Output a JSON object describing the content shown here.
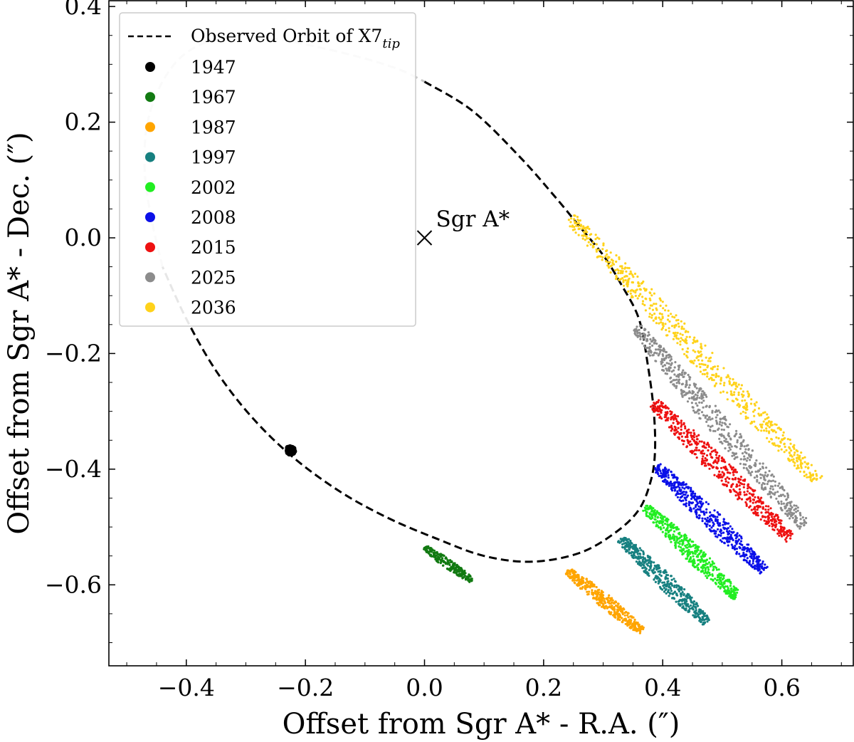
{
  "chart_data": {
    "type": "scatter",
    "xlabel": "Offset from Sgr A* - R.A. (″)",
    "ylabel": "Offset from Sgr A* - Dec. (″)",
    "xlim": [
      -0.53,
      0.72
    ],
    "ylim": [
      -0.74,
      0.41
    ],
    "xticks": [
      -0.4,
      -0.2,
      0.0,
      0.2,
      0.4,
      0.6
    ],
    "yticks": [
      0.4,
      0.2,
      0.0,
      -0.2,
      -0.4,
      -0.6
    ],
    "xtick_labels": [
      "−0.4",
      "−0.2",
      "0.0",
      "0.2",
      "0.4",
      "0.6"
    ],
    "ytick_labels": [
      "0.4",
      "0.2",
      "0.0",
      "−0.2",
      "−0.4",
      "−0.6"
    ],
    "orbit": {
      "label_main": "Observed Orbit of X7",
      "label_sub": "tip",
      "color": "#000000",
      "faded_color": "#c8c8c8",
      "points": [
        [
          0.0,
          0.27
        ],
        [
          0.08,
          0.22
        ],
        [
          0.16,
          0.14
        ],
        [
          0.22,
          0.07
        ],
        [
          0.26,
          0.02
        ],
        [
          0.3,
          -0.03
        ],
        [
          0.33,
          -0.08
        ],
        [
          0.36,
          -0.14
        ],
        [
          0.375,
          -0.22
        ],
        [
          0.385,
          -0.3
        ],
        [
          0.387,
          -0.37
        ],
        [
          0.38,
          -0.42
        ],
        [
          0.36,
          -0.47
        ],
        [
          0.32,
          -0.51
        ],
        [
          0.26,
          -0.545
        ],
        [
          0.18,
          -0.56
        ],
        [
          0.1,
          -0.55
        ],
        [
          0.02,
          -0.52
        ],
        [
          -0.06,
          -0.485
        ],
        [
          -0.14,
          -0.44
        ],
        [
          -0.22,
          -0.38
        ],
        [
          -0.29,
          -0.31
        ],
        [
          -0.35,
          -0.23
        ],
        [
          -0.4,
          -0.14
        ],
        [
          -0.44,
          -0.05
        ],
        [
          -0.46,
          0.04
        ],
        [
          -0.47,
          0.12
        ],
        [
          -0.465,
          0.2
        ],
        [
          -0.44,
          0.27
        ],
        [
          -0.4,
          0.32
        ],
        [
          -0.34,
          0.345
        ],
        [
          -0.26,
          0.345
        ],
        [
          -0.18,
          0.33
        ],
        [
          -0.1,
          0.31
        ],
        [
          -0.04,
          0.29
        ],
        [
          0.0,
          0.27
        ]
      ],
      "faded_x_range": [
        -0.47,
        0.0
      ],
      "faded_y_min": -0.13
    },
    "center": {
      "label": "Sgr A*",
      "x": 0.0,
      "y": 0.0
    },
    "series": [
      {
        "name": "1947",
        "color": "#000000",
        "x0": -0.23,
        "y0": -0.363,
        "x1": -0.22,
        "y1": -0.372,
        "halfwidth": 0.006,
        "n": 40
      },
      {
        "name": "1967",
        "color": "#127a12",
        "x0": 0.0,
        "y0": -0.535,
        "x1": 0.08,
        "y1": -0.593,
        "halfwidth": 0.008,
        "n": 240
      },
      {
        "name": "1987",
        "color": "#ffa500",
        "x0": 0.24,
        "y0": -0.575,
        "x1": 0.365,
        "y1": -0.68,
        "halfwidth": 0.012,
        "n": 420
      },
      {
        "name": "1997",
        "color": "#178080",
        "x0": 0.33,
        "y0": -0.52,
        "x1": 0.475,
        "y1": -0.665,
        "halfwidth": 0.014,
        "n": 450
      },
      {
        "name": "2002",
        "color": "#22ee22",
        "x0": 0.37,
        "y0": -0.465,
        "x1": 0.525,
        "y1": -0.62,
        "halfwidth": 0.015,
        "n": 480
      },
      {
        "name": "2008",
        "color": "#0b10e8",
        "x0": 0.39,
        "y0": -0.395,
        "x1": 0.57,
        "y1": -0.575,
        "halfwidth": 0.016,
        "n": 520
      },
      {
        "name": "2015",
        "color": "#ee1111",
        "x0": 0.385,
        "y0": -0.285,
        "x1": 0.615,
        "y1": -0.52,
        "halfwidth": 0.017,
        "n": 560
      },
      {
        "name": "2025",
        "color": "#8c8c8c",
        "x0": 0.355,
        "y0": -0.155,
        "x1": 0.64,
        "y1": -0.5,
        "halfwidth": 0.018,
        "n": 600
      },
      {
        "name": "2036",
        "color": "#ffd21a",
        "x0": 0.245,
        "y0": 0.035,
        "x1": 0.66,
        "y1": -0.42,
        "halfwidth": 0.019,
        "n": 640
      }
    ]
  }
}
